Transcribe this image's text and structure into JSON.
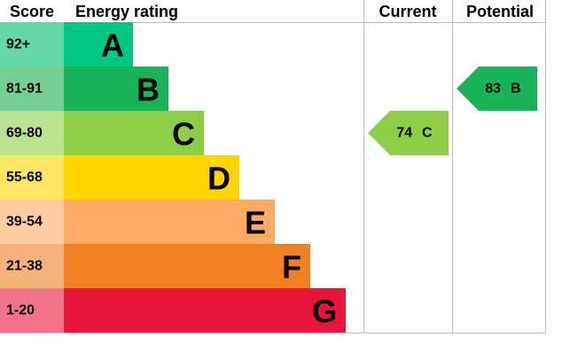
{
  "header": {
    "score": "Score",
    "rating": "Energy rating",
    "current": "Current",
    "potential": "Potential"
  },
  "bands": [
    {
      "score": "92+",
      "letter": "A",
      "color": "#00c781",
      "light": "#66d8a7"
    },
    {
      "score": "81-91",
      "letter": "B",
      "color": "#19b459",
      "light": "#74cf94"
    },
    {
      "score": "69-80",
      "letter": "C",
      "color": "#8dce46",
      "light": "#bae28f"
    },
    {
      "score": "55-68",
      "letter": "D",
      "color": "#ffd500",
      "light": "#ffe566"
    },
    {
      "score": "39-54",
      "letter": "E",
      "color": "#fcaa65",
      "light": "#fdcca3"
    },
    {
      "score": "21-38",
      "letter": "F",
      "color": "#ef8023",
      "light": "#f5b37b"
    },
    {
      "score": "1-20",
      "letter": "G",
      "color": "#e9153b",
      "light": "#f2738a"
    }
  ],
  "current": {
    "value": 74,
    "letter": "C"
  },
  "potential": {
    "value": 83,
    "letter": "B"
  }
}
